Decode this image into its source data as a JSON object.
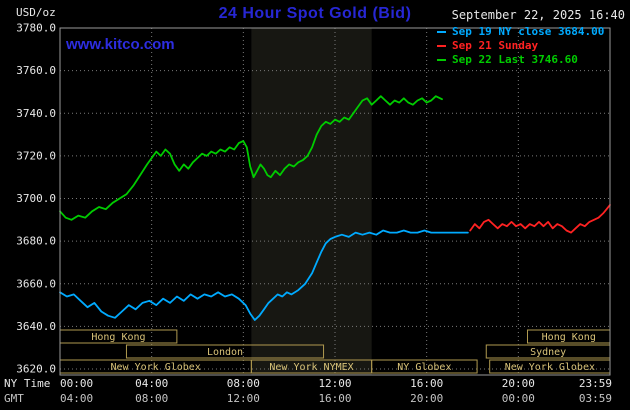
{
  "header": {
    "units": "USD/oz",
    "title": "24 Hour Spot Gold (Bid)",
    "datetime": "September 22, 2025 16:40",
    "watermark": "www.kitco.com"
  },
  "legend": {
    "items": [
      {
        "label": "Sep 19 NY close 3684.00",
        "color": "#00aaff"
      },
      {
        "label": "Sep 21 Sunday",
        "color": "#ff2222"
      },
      {
        "label": "Sep 22 Last 3746.60",
        "color": "#00cc00"
      }
    ]
  },
  "axes": {
    "ny_time_label": "NY Time",
    "gmt_label": "GMT",
    "x_ticks": [
      {
        "hour": 0,
        "ny": "00:00",
        "gmt": "04:00"
      },
      {
        "hour": 4,
        "ny": "04:00",
        "gmt": "08:00"
      },
      {
        "hour": 8,
        "ny": "08:00",
        "gmt": "12:00"
      },
      {
        "hour": 12,
        "ny": "12:00",
        "gmt": "16:00"
      },
      {
        "hour": 16,
        "ny": "16:00",
        "gmt": "20:00"
      },
      {
        "hour": 20,
        "ny": "20:00",
        "gmt": "00:00"
      },
      {
        "hour": 23.983,
        "ny": "23:59",
        "gmt": "03:59"
      }
    ],
    "y_ticks": [
      3780,
      3760,
      3740,
      3720,
      3700,
      3680,
      3660,
      3640,
      3620
    ]
  },
  "sessions": {
    "border_color": "#b09a50",
    "text_color": "#d8c278",
    "rows": [
      [
        {
          "label": "Hong Kong",
          "start": 0,
          "end": 5.1
        },
        {
          "label": "Hong Kong",
          "start": 20.4,
          "end": 24
        }
      ],
      [
        {
          "label": "London",
          "start": 2.9,
          "end": 11.5
        },
        {
          "label": "Sydney",
          "start": 18.6,
          "end": 24
        }
      ],
      [
        {
          "label": "New York Globex",
          "start": 0,
          "end": 8.35
        },
        {
          "label": "New York NYMEX",
          "start": 8.35,
          "end": 13.6
        },
        {
          "label": "NY Globex",
          "start": 13.6,
          "end": 18.2
        },
        {
          "label": "New York Globex",
          "start": 18.75,
          "end": 24
        }
      ]
    ]
  },
  "colors": {
    "background": "#000000",
    "title": "#2727d4",
    "watermark": "#2d2de0",
    "grid": "#7a7a7a",
    "border": "#9a9a9a",
    "axis_text": "#e8e8e8",
    "gmt_text": "#c4c4c4"
  },
  "chart_data": {
    "type": "line",
    "title": "24 Hour Spot Gold (Bid)",
    "xlabel": "NY Time (hours)",
    "ylabel": "USD/oz",
    "xlim": [
      0,
      24
    ],
    "ylim": [
      3620,
      3780
    ],
    "grid": true,
    "legend_position": "top-right",
    "shade_band": {
      "start": 8.35,
      "end": 13.6,
      "color": "#171712"
    },
    "series": [
      {
        "id": "sep19",
        "name": "Sep 19 NY close 3684.00",
        "color": "#00aaff",
        "points": [
          [
            0,
            3656
          ],
          [
            0.3,
            3654
          ],
          [
            0.6,
            3655
          ],
          [
            0.9,
            3652
          ],
          [
            1.2,
            3649
          ],
          [
            1.5,
            3651
          ],
          [
            1.8,
            3647
          ],
          [
            2.1,
            3645
          ],
          [
            2.4,
            3644
          ],
          [
            2.7,
            3647
          ],
          [
            3,
            3650
          ],
          [
            3.3,
            3648
          ],
          [
            3.6,
            3651
          ],
          [
            3.9,
            3652
          ],
          [
            4.2,
            3650
          ],
          [
            4.5,
            3653
          ],
          [
            4.8,
            3651
          ],
          [
            5.1,
            3654
          ],
          [
            5.4,
            3652
          ],
          [
            5.7,
            3655
          ],
          [
            6,
            3653
          ],
          [
            6.3,
            3655
          ],
          [
            6.6,
            3654
          ],
          [
            6.9,
            3656
          ],
          [
            7.2,
            3654
          ],
          [
            7.5,
            3655
          ],
          [
            7.8,
            3653
          ],
          [
            8.1,
            3650
          ],
          [
            8.3,
            3646
          ],
          [
            8.5,
            3643
          ],
          [
            8.7,
            3645
          ],
          [
            8.9,
            3648
          ],
          [
            9.1,
            3651
          ],
          [
            9.3,
            3653
          ],
          [
            9.5,
            3655
          ],
          [
            9.7,
            3654
          ],
          [
            9.9,
            3656
          ],
          [
            10.1,
            3655
          ],
          [
            10.4,
            3657
          ],
          [
            10.7,
            3660
          ],
          [
            11,
            3665
          ],
          [
            11.2,
            3670
          ],
          [
            11.4,
            3675
          ],
          [
            11.6,
            3679
          ],
          [
            11.8,
            3681
          ],
          [
            12,
            3682
          ],
          [
            12.3,
            3683
          ],
          [
            12.6,
            3682
          ],
          [
            12.9,
            3684
          ],
          [
            13.2,
            3683
          ],
          [
            13.5,
            3684
          ],
          [
            13.8,
            3683
          ],
          [
            14.1,
            3685
          ],
          [
            14.4,
            3684
          ],
          [
            14.7,
            3684
          ],
          [
            15,
            3685
          ],
          [
            15.3,
            3684
          ],
          [
            15.6,
            3684
          ],
          [
            15.9,
            3685
          ],
          [
            16.2,
            3684
          ],
          [
            16.5,
            3684
          ],
          [
            16.9,
            3684
          ],
          [
            17.3,
            3684
          ],
          [
            17.8,
            3684
          ]
        ]
      },
      {
        "id": "sep21",
        "name": "Sep 21 Sunday",
        "color": "#ff2222",
        "points": [
          [
            17.9,
            3685
          ],
          [
            18.1,
            3688
          ],
          [
            18.3,
            3686
          ],
          [
            18.5,
            3689
          ],
          [
            18.7,
            3690
          ],
          [
            18.9,
            3688
          ],
          [
            19.1,
            3686
          ],
          [
            19.3,
            3688
          ],
          [
            19.5,
            3687
          ],
          [
            19.7,
            3689
          ],
          [
            19.9,
            3687
          ],
          [
            20.1,
            3688
          ],
          [
            20.3,
            3686
          ],
          [
            20.5,
            3688
          ],
          [
            20.7,
            3687
          ],
          [
            20.9,
            3689
          ],
          [
            21.1,
            3687
          ],
          [
            21.3,
            3689
          ],
          [
            21.5,
            3686
          ],
          [
            21.7,
            3688
          ],
          [
            21.9,
            3687
          ],
          [
            22.1,
            3685
          ],
          [
            22.3,
            3684
          ],
          [
            22.5,
            3686
          ],
          [
            22.7,
            3688
          ],
          [
            22.9,
            3687
          ],
          [
            23.1,
            3689
          ],
          [
            23.3,
            3690
          ],
          [
            23.5,
            3691
          ],
          [
            23.7,
            3693
          ],
          [
            23.85,
            3695
          ],
          [
            24,
            3697
          ]
        ]
      },
      {
        "id": "sep22",
        "name": "Sep 22 Last 3746.60",
        "color": "#00cc00",
        "points": [
          [
            0,
            3694
          ],
          [
            0.25,
            3691
          ],
          [
            0.5,
            3690
          ],
          [
            0.8,
            3692
          ],
          [
            1.1,
            3691
          ],
          [
            1.4,
            3694
          ],
          [
            1.7,
            3696
          ],
          [
            2,
            3695
          ],
          [
            2.3,
            3698
          ],
          [
            2.6,
            3700
          ],
          [
            2.9,
            3702
          ],
          [
            3.2,
            3706
          ],
          [
            3.5,
            3711
          ],
          [
            3.8,
            3716
          ],
          [
            4,
            3719
          ],
          [
            4.2,
            3722
          ],
          [
            4.4,
            3720
          ],
          [
            4.6,
            3723
          ],
          [
            4.8,
            3721
          ],
          [
            5,
            3716
          ],
          [
            5.2,
            3713
          ],
          [
            5.4,
            3716
          ],
          [
            5.6,
            3714
          ],
          [
            5.8,
            3717
          ],
          [
            6,
            3719
          ],
          [
            6.2,
            3721
          ],
          [
            6.4,
            3720
          ],
          [
            6.6,
            3722
          ],
          [
            6.8,
            3721
          ],
          [
            7,
            3723
          ],
          [
            7.2,
            3722
          ],
          [
            7.4,
            3724
          ],
          [
            7.6,
            3723
          ],
          [
            7.8,
            3726
          ],
          [
            8,
            3727
          ],
          [
            8.15,
            3724
          ],
          [
            8.3,
            3715
          ],
          [
            8.45,
            3710
          ],
          [
            8.6,
            3713
          ],
          [
            8.75,
            3716
          ],
          [
            8.9,
            3714
          ],
          [
            9.05,
            3711
          ],
          [
            9.2,
            3710
          ],
          [
            9.4,
            3713
          ],
          [
            9.6,
            3711
          ],
          [
            9.8,
            3714
          ],
          [
            10,
            3716
          ],
          [
            10.2,
            3715
          ],
          [
            10.4,
            3717
          ],
          [
            10.6,
            3718
          ],
          [
            10.8,
            3720
          ],
          [
            11,
            3724
          ],
          [
            11.2,
            3730
          ],
          [
            11.4,
            3734
          ],
          [
            11.6,
            3736
          ],
          [
            11.8,
            3735
          ],
          [
            12,
            3737
          ],
          [
            12.2,
            3736
          ],
          [
            12.4,
            3738
          ],
          [
            12.6,
            3737
          ],
          [
            12.8,
            3740
          ],
          [
            13,
            3743
          ],
          [
            13.2,
            3746
          ],
          [
            13.4,
            3747
          ],
          [
            13.6,
            3744
          ],
          [
            13.8,
            3746
          ],
          [
            14,
            3748
          ],
          [
            14.2,
            3746
          ],
          [
            14.4,
            3744
          ],
          [
            14.6,
            3746
          ],
          [
            14.8,
            3745
          ],
          [
            15,
            3747
          ],
          [
            15.2,
            3745
          ],
          [
            15.4,
            3744
          ],
          [
            15.6,
            3746
          ],
          [
            15.8,
            3747
          ],
          [
            16,
            3745
          ],
          [
            16.2,
            3746
          ],
          [
            16.4,
            3748
          ],
          [
            16.67,
            3746.6
          ]
        ]
      }
    ]
  }
}
